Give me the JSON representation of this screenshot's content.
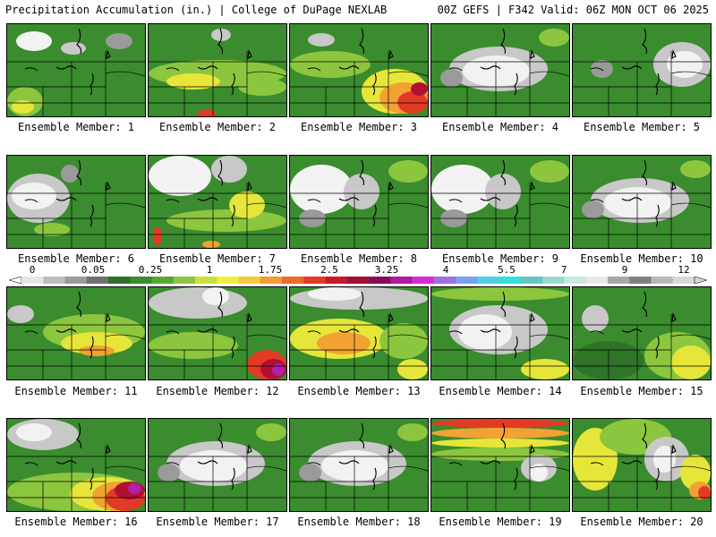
{
  "header": {
    "left": "Precipitation Accumulation (in.) | College of DuPage NEXLAB",
    "right": "00Z GEFS | F342 Valid: 06Z MON OCT 06 2025"
  },
  "colorbar": {
    "tick_labels": [
      "0",
      "0.05",
      "0.25",
      "1",
      "1.75",
      "2.5",
      "3.25",
      "4",
      "5.5",
      "7",
      "9",
      "12"
    ],
    "colors": [
      "#e6e6e6",
      "#bdbdbd",
      "#9a9a9a",
      "#6f6f6f",
      "#2f6f2a",
      "#3a8c2e",
      "#57a832",
      "#8cc63f",
      "#cbe03a",
      "#f0f03c",
      "#f6c83a",
      "#f49a32",
      "#ee6a2a",
      "#e23a24",
      "#c8182a",
      "#a01034",
      "#8a0a5a",
      "#b01aa0",
      "#d82ad8",
      "#a070e0",
      "#7aa0f0",
      "#50d0e8",
      "#30e0d8",
      "#60c8c0",
      "#9ad8d0",
      "#c8e8e4",
      "#e8e8e8",
      "#a8a8a8",
      "#808080",
      "#b8b8b8",
      "#d8d8d8"
    ]
  },
  "panels": [
    {
      "label": "Ensemble Member: 1",
      "pattern": "mixed_grey_nw"
    },
    {
      "label": "Ensemble Member: 2",
      "pattern": "green_yellow_red_spot"
    },
    {
      "label": "Ensemble Member: 3",
      "pattern": "orange_red_east"
    },
    {
      "label": "Ensemble Member: 4",
      "pattern": "white_center"
    },
    {
      "label": "Ensemble Member: 5",
      "pattern": "grey_east"
    },
    {
      "label": "Ensemble Member: 6",
      "pattern": "grey_west"
    },
    {
      "label": "Ensemble Member: 7",
      "pattern": "white_nw_red_sw"
    },
    {
      "label": "Ensemble Member: 8",
      "pattern": "white_west"
    },
    {
      "label": "Ensemble Member: 9",
      "pattern": "white_west"
    },
    {
      "label": "Ensemble Member: 10",
      "pattern": "white_center"
    },
    {
      "label": "Ensemble Member: 11",
      "pattern": "yellow_band"
    },
    {
      "label": "Ensemble Member: 12",
      "pattern": "grey_north_red_se"
    },
    {
      "label": "Ensemble Member: 13",
      "pattern": "yellow_orange_center"
    },
    {
      "label": "Ensemble Member: 14",
      "pattern": "grey_center"
    },
    {
      "label": "Ensemble Member: 15",
      "pattern": "green_yellow_se"
    },
    {
      "label": "Ensemble Member: 16",
      "pattern": "magenta_se"
    },
    {
      "label": "Ensemble Member: 17",
      "pattern": "white_center"
    },
    {
      "label": "Ensemble Member: 18",
      "pattern": "white_center"
    },
    {
      "label": "Ensemble Member: 19",
      "pattern": "red_north_band"
    },
    {
      "label": "Ensemble Member: 20",
      "pattern": "yellow_west_red_se"
    }
  ]
}
